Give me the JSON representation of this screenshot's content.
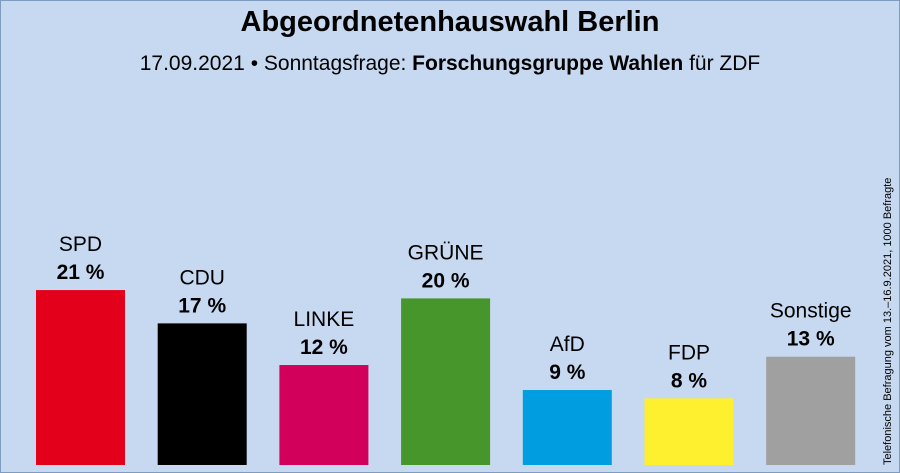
{
  "title": "Abgeordnetenhauswahl Berlin",
  "subtitle": {
    "date": "17.09.2021",
    "separator": "•",
    "label": "Sonntagsfrage:",
    "institute": "Forschungsgruppe Wahlen",
    "client": "für ZDF"
  },
  "sidenote": "Telefonische Befragung vom 13.–16.9.2021, 1000 Befragte",
  "colors": {
    "background": "#c6d9f1"
  },
  "chart_data": {
    "type": "bar",
    "categories": [
      "SPD",
      "CDU",
      "LINKE",
      "GRÜNE",
      "AfD",
      "FDP",
      "Sonstige"
    ],
    "values": [
      21,
      17,
      12,
      20,
      9,
      8,
      13
    ],
    "value_labels": [
      "21 %",
      "17 %",
      "12 %",
      "20 %",
      "9 %",
      "8 %",
      "13 %"
    ],
    "colors": [
      "#e3001b",
      "#000000",
      "#d3005b",
      "#46962b",
      "#009ee0",
      "#fff02f",
      "#a0a0a0"
    ],
    "unit": "%",
    "ylim": [
      0,
      21
    ],
    "grid": false,
    "legend": "none"
  }
}
